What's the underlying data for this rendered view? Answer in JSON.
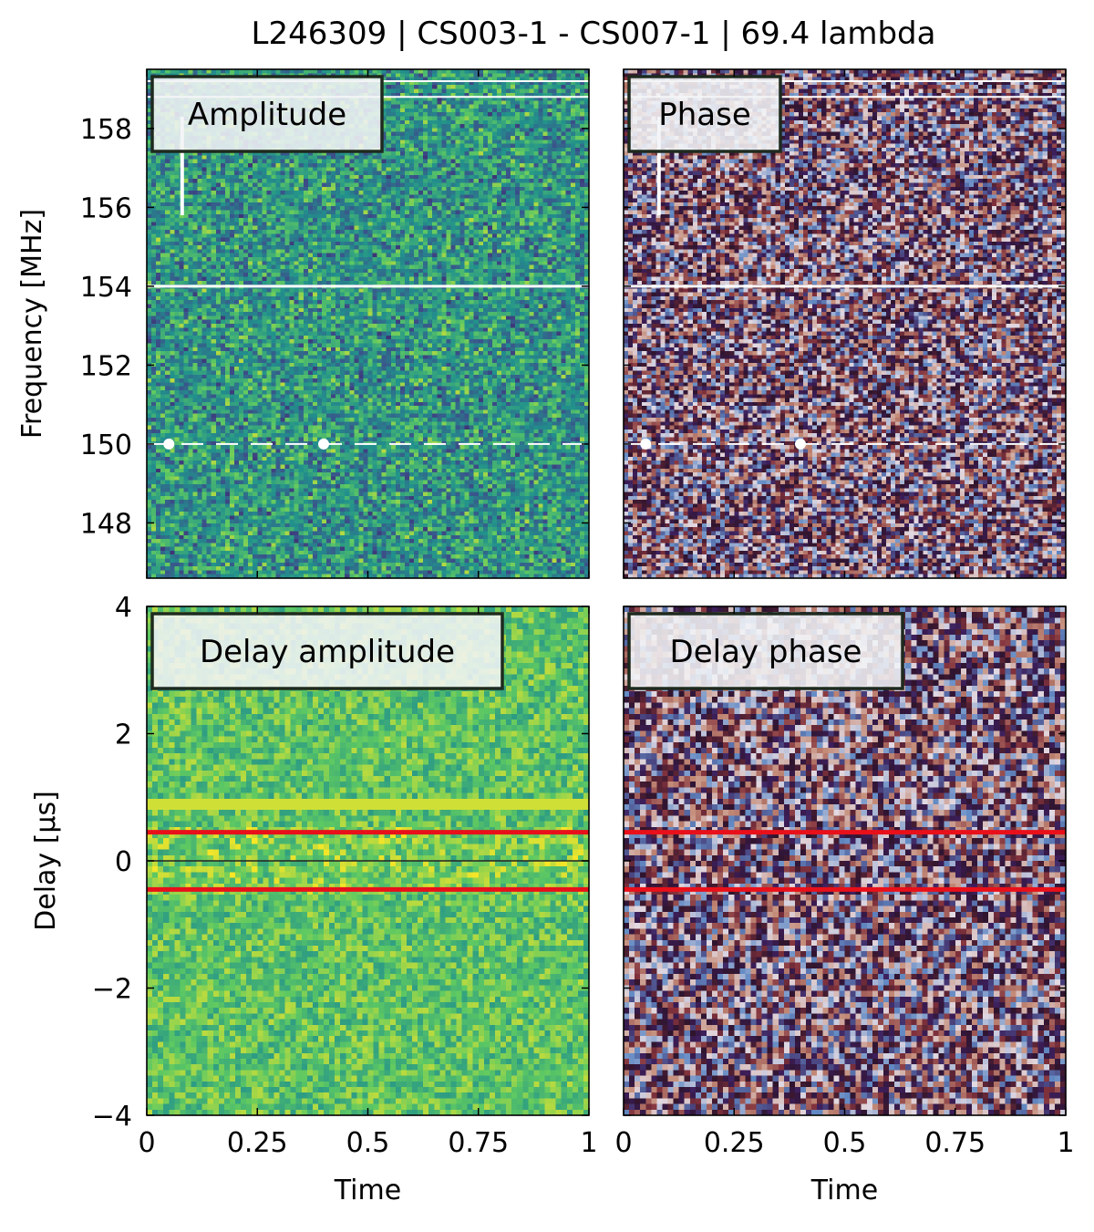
{
  "chart_data": {
    "type": "heatmap",
    "title": "L246309 | CS003-1 - CS007-1 | 69.4 lambda",
    "panels": [
      {
        "id": "amplitude",
        "label": "Amplitude",
        "colormap": "viridis",
        "xlabel": "",
        "ylabel": "Frequency [MHz]",
        "xlim": [
          0,
          1
        ],
        "ylim": [
          146.6,
          159.5
        ],
        "yticks": [
          148,
          150,
          152,
          154,
          156,
          158
        ],
        "ytick_labels": [
          "148",
          "150",
          "152",
          "154",
          "156",
          "158"
        ],
        "xticks": [
          0,
          0.25,
          0.5,
          0.75,
          1
        ],
        "xtick_labels": [],
        "grid_cols": 96,
        "grid_rows": 130,
        "flagged_rows": [
          154.0,
          159.2,
          158.8,
          150.0
        ],
        "flag_col": 0.08
      },
      {
        "id": "phase",
        "label": "Phase",
        "colormap": "twilight",
        "xlabel": "",
        "ylabel": "",
        "xlim": [
          0,
          1
        ],
        "ylim": [
          146.6,
          159.5
        ],
        "yticks": [
          148,
          150,
          152,
          154,
          156,
          158
        ],
        "ytick_labels": [],
        "xticks": [
          0,
          0.25,
          0.5,
          0.75,
          1
        ],
        "xtick_labels": [],
        "grid_cols": 96,
        "grid_rows": 130,
        "flagged_rows": [
          154.0,
          159.2,
          158.8,
          150.0
        ],
        "flag_col": 0.08
      },
      {
        "id": "delay_amplitude",
        "label": "Delay amplitude",
        "colormap": "viridis-light",
        "xlabel": "Time",
        "ylabel": "Delay [μs]",
        "xlim": [
          0,
          1
        ],
        "ylim": [
          -4,
          4
        ],
        "yticks": [
          -4,
          -2,
          0,
          2,
          4
        ],
        "ytick_labels": [
          "−4",
          "−2",
          "0",
          "2",
          "4"
        ],
        "xticks": [
          0,
          0.25,
          0.5,
          0.75,
          1
        ],
        "xtick_labels": [
          "0",
          "0.25",
          "0.5",
          "0.75",
          "1"
        ],
        "grid_cols": 80,
        "grid_rows": 90,
        "red_lines": [
          0.45,
          -0.45
        ],
        "black_line": 0,
        "bright_band": 0.9
      },
      {
        "id": "delay_phase",
        "label": "Delay phase",
        "colormap": "twilight",
        "xlabel": "Time",
        "ylabel": "",
        "xlim": [
          0,
          1
        ],
        "ylim": [
          -4,
          4
        ],
        "yticks": [
          -4,
          -2,
          0,
          2,
          4
        ],
        "ytick_labels": [],
        "xticks": [
          0,
          0.25,
          0.5,
          0.75,
          1
        ],
        "xtick_labels": [
          "0",
          "0.25",
          "0.5",
          "0.75",
          "1"
        ],
        "grid_cols": 80,
        "grid_rows": 90,
        "red_lines": [
          0.45,
          -0.45
        ]
      }
    ]
  },
  "colors": {
    "red_line": "#e8101a",
    "flag": "#ffffff",
    "label_box_border": "#1e2a1e",
    "label_box_fill": "#f2f4f6"
  }
}
